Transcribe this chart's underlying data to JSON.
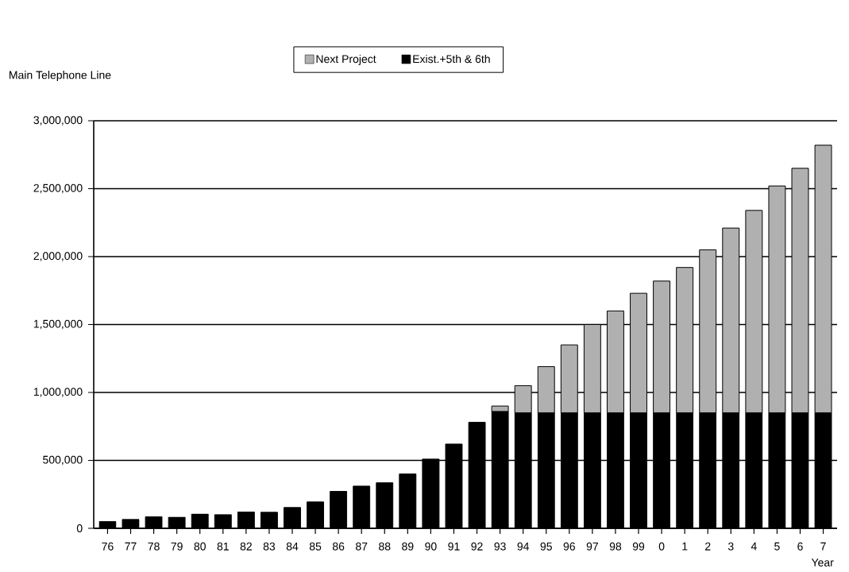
{
  "chart_data": {
    "type": "bar",
    "stacked": true,
    "ylabel": "Main Telephone Line",
    "xlabel": "Year",
    "categories": [
      "76",
      "77",
      "78",
      "79",
      "80",
      "81",
      "82",
      "83",
      "84",
      "85",
      "86",
      "87",
      "88",
      "89",
      "90",
      "91",
      "92",
      "93",
      "94",
      "95",
      "96",
      "97",
      "98",
      "99",
      "0",
      "1",
      "2",
      "3",
      "4",
      "5",
      "6",
      "7"
    ],
    "series": [
      {
        "name": "Exist.+5th & 6th",
        "color": "#000000",
        "values": [
          50000,
          65000,
          85000,
          82000,
          105000,
          100000,
          120000,
          118000,
          153000,
          194000,
          272000,
          311000,
          335000,
          400000,
          510000,
          620000,
          780000,
          860000,
          850000,
          850000,
          850000,
          850000,
          850000,
          850000,
          850000,
          850000,
          850000,
          850000,
          850000,
          850000,
          850000,
          850000
        ]
      },
      {
        "name": "Next Project",
        "color": "#b0b0b0",
        "values": [
          null,
          null,
          null,
          null,
          null,
          null,
          null,
          null,
          null,
          null,
          null,
          null,
          null,
          null,
          null,
          null,
          null,
          40000,
          200000,
          340000,
          500000,
          650000,
          750000,
          880000,
          970000,
          1070000,
          1200000,
          1360000,
          1490000,
          1670000,
          1800000,
          1970000
        ]
      }
    ],
    "ylim": [
      0,
      3000000
    ],
    "yticks": [
      0,
      {
        "value": 500000,
        "label": "500,000"
      },
      {
        "value": 1000000,
        "label": "1,000,000"
      },
      {
        "value": 1500000,
        "label": "1,500,000"
      },
      {
        "value": 2000000,
        "label": "2,000,000"
      },
      {
        "value": 2500000,
        "label": "2,500,000"
      },
      {
        "value": 3000000,
        "label": "3,000,000"
      }
    ],
    "grid": "y",
    "legend": "top"
  }
}
